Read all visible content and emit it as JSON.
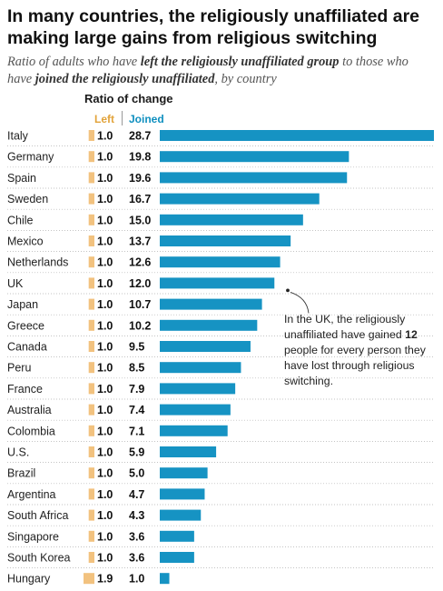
{
  "title": "In many countries, the religiously unaffiliated are making large gains from religious switching",
  "subtitle": {
    "part1": "Ratio of adults who have ",
    "em1": "left the religiously unaffiliated group",
    "part2": " to those who have ",
    "em2": "joined the religiously unaffiliated",
    "part3": ", by country"
  },
  "ratio_heading": "Ratio of change",
  "left_label": "Left",
  "joined_label": "Joined",
  "annotation": {
    "pre": "In the UK, the religiously unaffiliated have gained ",
    "bold": "12",
    "post": " people for every person they have lost through religious switching."
  },
  "colors": {
    "left": "#f2c27f",
    "joined": "#1693c3"
  },
  "chart_data": {
    "type": "bar",
    "title": "In many countries, the religiously unaffiliated are making large gains from religious switching",
    "ylabel": "Ratio of change",
    "categories": [
      "Italy",
      "Germany",
      "Spain",
      "Sweden",
      "Chile",
      "Mexico",
      "Netherlands",
      "UK",
      "Japan",
      "Greece",
      "Canada",
      "Peru",
      "France",
      "Australia",
      "Colombia",
      "U.S.",
      "Brazil",
      "Argentina",
      "South Africa",
      "Singapore",
      "South Korea",
      "Hungary"
    ],
    "series": [
      {
        "name": "Left",
        "values": [
          1.0,
          1.0,
          1.0,
          1.0,
          1.0,
          1.0,
          1.0,
          1.0,
          1.0,
          1.0,
          1.0,
          1.0,
          1.0,
          1.0,
          1.0,
          1.0,
          1.0,
          1.0,
          1.0,
          1.0,
          1.0,
          1.9
        ]
      },
      {
        "name": "Joined",
        "values": [
          28.7,
          19.8,
          19.6,
          16.7,
          15.0,
          13.7,
          12.6,
          12.0,
          10.7,
          10.2,
          9.5,
          8.5,
          7.9,
          7.4,
          7.1,
          5.9,
          5.0,
          4.7,
          4.3,
          3.6,
          3.6,
          1.0
        ]
      }
    ]
  }
}
